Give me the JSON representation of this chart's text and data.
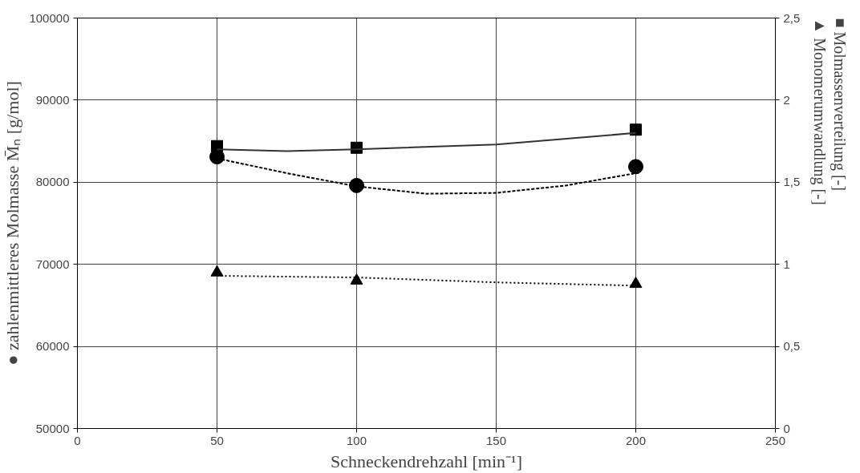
{
  "chart_data": {
    "type": "line",
    "xlabel": "Schneckendrehzahl [min⁻¹]",
    "ylabel": "● zahlenmittleres Molmasse M̄ₙ [g/mol]",
    "y2label": "■ Molmassenverteilung [-]",
    "annotations": [
      "▲ Monomerumwandlung [-]"
    ],
    "xlim": [
      0,
      250
    ],
    "xticks": [
      0,
      50,
      100,
      150,
      200,
      250
    ],
    "ylim": [
      50000,
      100000
    ],
    "yticks": [
      50000,
      60000,
      70000,
      80000,
      90000,
      100000
    ],
    "y2lim": [
      0,
      2.5
    ],
    "y2ticks": [
      0,
      {
        "value": 0.5,
        "label": "0,5"
      },
      1,
      {
        "value": 1.5,
        "label": "1,5"
      },
      2,
      {
        "value": 2.5,
        "label": "2,5"
      }
    ],
    "grid": true,
    "series": [
      {
        "type": "scatter",
        "marker": "circle",
        "color": "#000000",
        "x": [
          50,
          100,
          200
        ],
        "values": [
          83100,
          79600,
          81900
        ]
      },
      {
        "line_style": "dashed",
        "color": "#000000",
        "x": [
          50,
          75,
          100,
          125,
          150,
          175,
          200
        ],
        "values": [
          82900,
          81100,
          79500,
          78600,
          78700,
          79600,
          81100
        ]
      },
      {
        "type": "scatter",
        "marker": "square",
        "axis": "y2",
        "color": "#000000",
        "x": [
          50,
          100,
          200
        ],
        "values": [
          1.72,
          1.71,
          1.82
        ]
      },
      {
        "line_style": "solid",
        "axis": "y2",
        "color": "#333333",
        "x": [
          50,
          75,
          100,
          150,
          200
        ],
        "values": [
          1.7,
          1.69,
          1.7,
          1.73,
          1.8
        ]
      },
      {
        "type": "scatter",
        "marker": "triangle",
        "axis": "y2",
        "color": "#000000",
        "x": [
          50,
          100,
          200
        ],
        "values": [
          0.95,
          0.9,
          0.88
        ]
      },
      {
        "line_style": "dotted",
        "axis": "y2",
        "color": "#000000",
        "x": [
          50,
          100,
          150,
          200
        ],
        "values": [
          0.93,
          0.92,
          0.89,
          0.87
        ]
      }
    ]
  }
}
